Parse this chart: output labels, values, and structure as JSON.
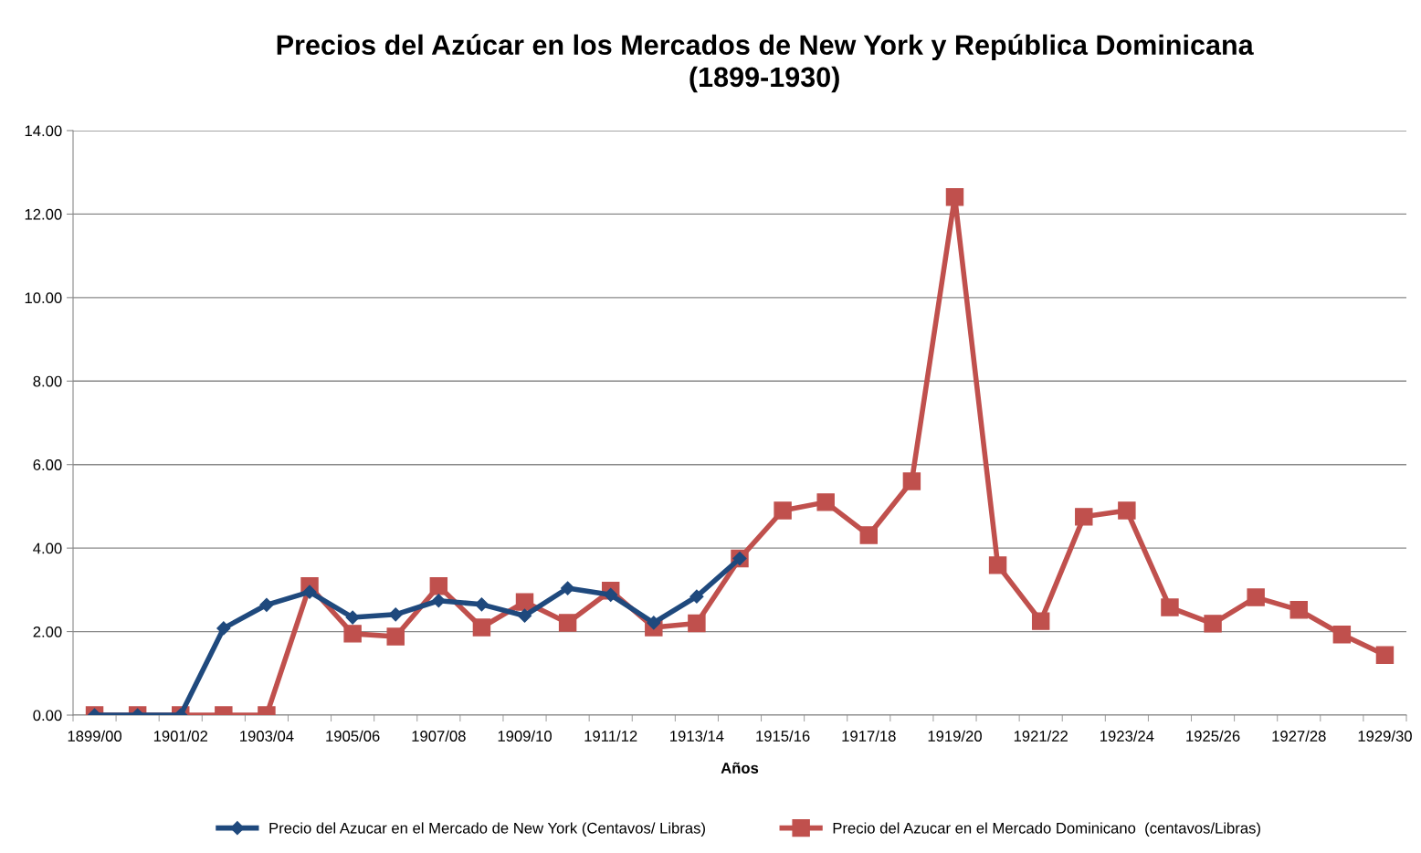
{
  "chart_data": {
    "type": "line",
    "title": "Precios del Azúcar en los Mercados de New York y República Dominicana\n(1899-1930)",
    "xlabel": "Años",
    "categories": [
      "1899/00",
      null,
      "1901/02",
      null,
      "1903/04",
      null,
      "1905/06",
      null,
      "1907/08",
      null,
      "1909/10",
      null,
      "1911/12",
      null,
      "1913/14",
      null,
      "1915/16",
      null,
      "1917/18",
      null,
      "1919/20",
      null,
      "1921/22",
      null,
      "1923/24",
      null,
      "1925/26",
      null,
      "1927/28",
      null,
      "1929/30"
    ],
    "series": [
      {
        "name": "Precio del Azucar en el Mercado de New York (Centavos/ Libras)",
        "color": "#1f497d",
        "marker": "diamond",
        "values": [
          0,
          0,
          0,
          2.08,
          2.64,
          2.95,
          2.34,
          2.41,
          2.74,
          2.65,
          2.38,
          3.04,
          2.88,
          2.21,
          2.84,
          3.75,
          null,
          null,
          null,
          null,
          null,
          null,
          null,
          null,
          null,
          null,
          null,
          null,
          null,
          null,
          null
        ]
      },
      {
        "name": "Precio del Azucar en el Mercado Dominicano  (centavos/Libras)",
        "color": "#c0504d",
        "marker": "square",
        "values": [
          0,
          0,
          0,
          0,
          0,
          3.09,
          1.95,
          1.88,
          3.09,
          2.1,
          2.71,
          2.21,
          2.98,
          2.1,
          2.2,
          3.75,
          4.9,
          5.1,
          4.31,
          5.6,
          12.41,
          3.59,
          2.25,
          4.75,
          4.9,
          2.58,
          2.19,
          2.82,
          2.52,
          1.93,
          1.44
        ]
      }
    ],
    "ylim": [
      0,
      14
    ],
    "yticks": [
      {
        "value": 0,
        "label": "0.00"
      },
      {
        "value": 2,
        "label": "2.00"
      },
      {
        "value": 4,
        "label": "4.00"
      },
      {
        "value": 6,
        "label": "6.00"
      },
      {
        "value": 8,
        "label": "8.00"
      },
      {
        "value": 10,
        "label": "10.00"
      },
      {
        "value": 12,
        "label": "12.00"
      },
      {
        "value": 14,
        "label": "14.00"
      }
    ],
    "grid": "y",
    "legend": "bottom",
    "line_style": "solid"
  }
}
